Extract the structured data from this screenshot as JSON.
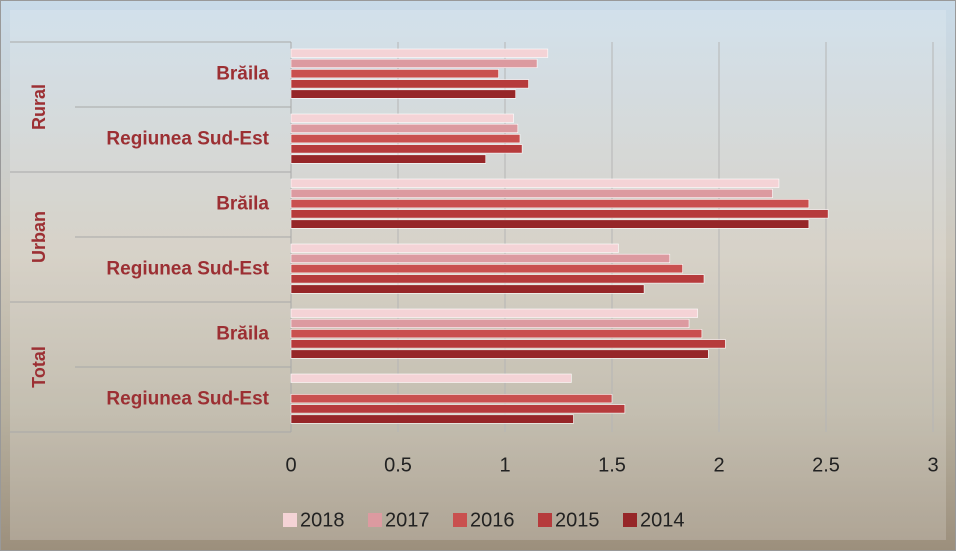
{
  "chart_data": {
    "type": "bar",
    "orientation": "horizontal",
    "groups": [
      "Rural",
      "Urban",
      "Total"
    ],
    "categories": [
      "Brăila",
      "Regiunea Sud-Est",
      "Brăila",
      "Regiunea Sud-Est",
      "Brăila",
      "Regiunea Sud-Est"
    ],
    "series": [
      {
        "name": "2018",
        "color": "#f4d3d6",
        "values": [
          1.2,
          1.04,
          2.28,
          1.53,
          1.9,
          1.31
        ]
      },
      {
        "name": "2017",
        "color": "#dc9aa0",
        "values": [
          1.15,
          1.06,
          2.25,
          1.77,
          1.86,
          null
        ]
      },
      {
        "name": "2016",
        "color": "#c9504f",
        "values": [
          0.97,
          1.07,
          2.42,
          1.83,
          1.92,
          1.5
        ]
      },
      {
        "name": "2015",
        "color": "#b63b3c",
        "values": [
          1.11,
          1.08,
          2.51,
          1.93,
          2.03,
          1.56
        ]
      },
      {
        "name": "2014",
        "color": "#962628",
        "values": [
          1.05,
          0.91,
          2.42,
          1.65,
          1.95,
          1.32
        ]
      }
    ],
    "xlim": [
      0,
      3
    ],
    "xticks": [
      0,
      0.5,
      1,
      1.5,
      2,
      2.5,
      3
    ],
    "grid": true,
    "legend": "bottom"
  }
}
